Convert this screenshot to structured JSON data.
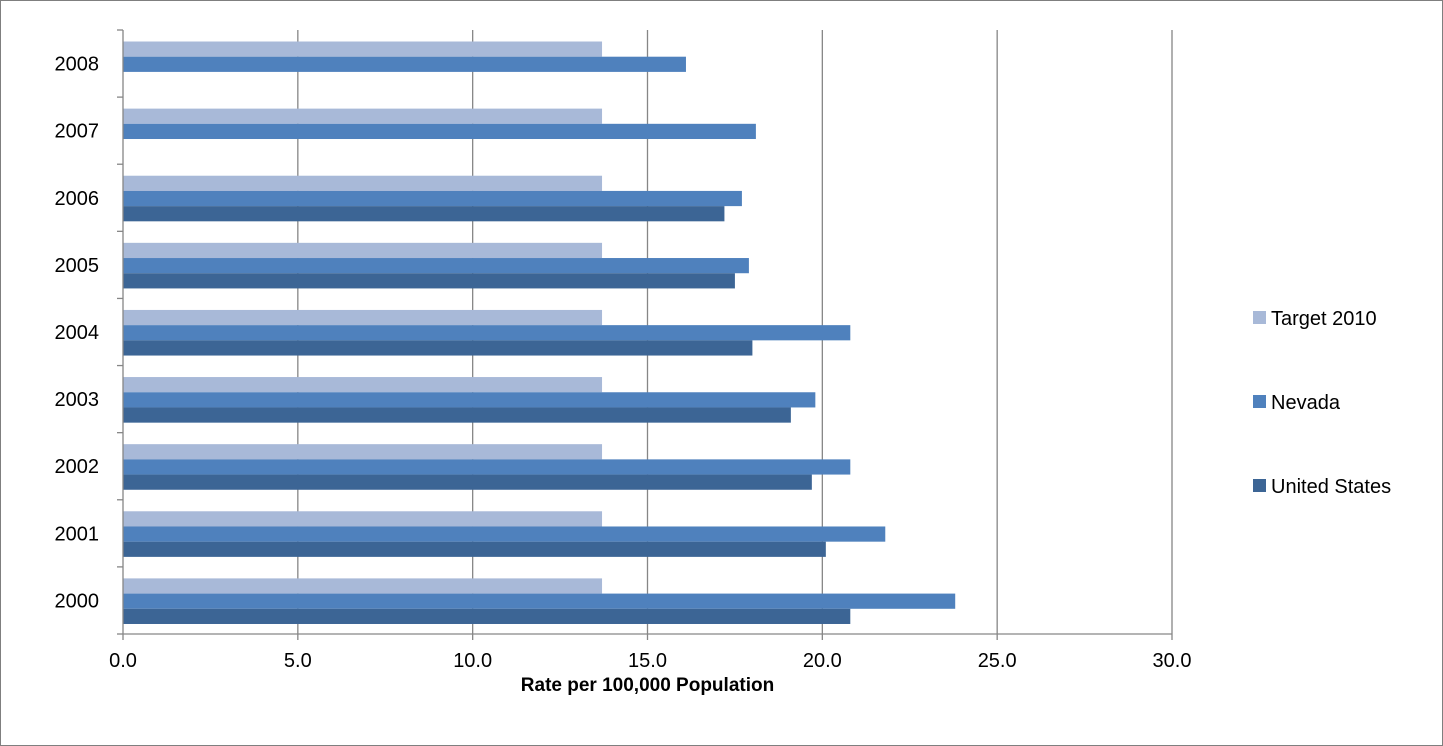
{
  "chart_data": {
    "type": "bar",
    "orientation": "horizontal",
    "title": "",
    "xlabel": "Rate per 100,000 Population",
    "ylabel": "",
    "xlim": [
      0,
      30
    ],
    "x_ticks": [
      "0.0",
      "5.0",
      "10.0",
      "15.0",
      "20.0",
      "25.0",
      "30.0"
    ],
    "grid": "vertical major gridlines",
    "legend_position": "right",
    "categories": [
      "2000",
      "2001",
      "2002",
      "2003",
      "2004",
      "2005",
      "2006",
      "2007",
      "2008"
    ],
    "series": [
      {
        "name": "Target 2010",
        "color": "#a8b9d8",
        "values": [
          13.7,
          13.7,
          13.7,
          13.7,
          13.7,
          13.7,
          13.7,
          13.7,
          13.7
        ]
      },
      {
        "name": "Nevada",
        "color": "#4f81bd",
        "values": [
          23.8,
          21.8,
          20.8,
          19.8,
          20.8,
          17.9,
          17.7,
          18.1,
          16.1
        ]
      },
      {
        "name": "United States",
        "color": "#3c6595",
        "values": [
          20.8,
          20.1,
          19.7,
          19.1,
          18.0,
          17.5,
          17.2,
          null,
          null
        ]
      }
    ]
  }
}
